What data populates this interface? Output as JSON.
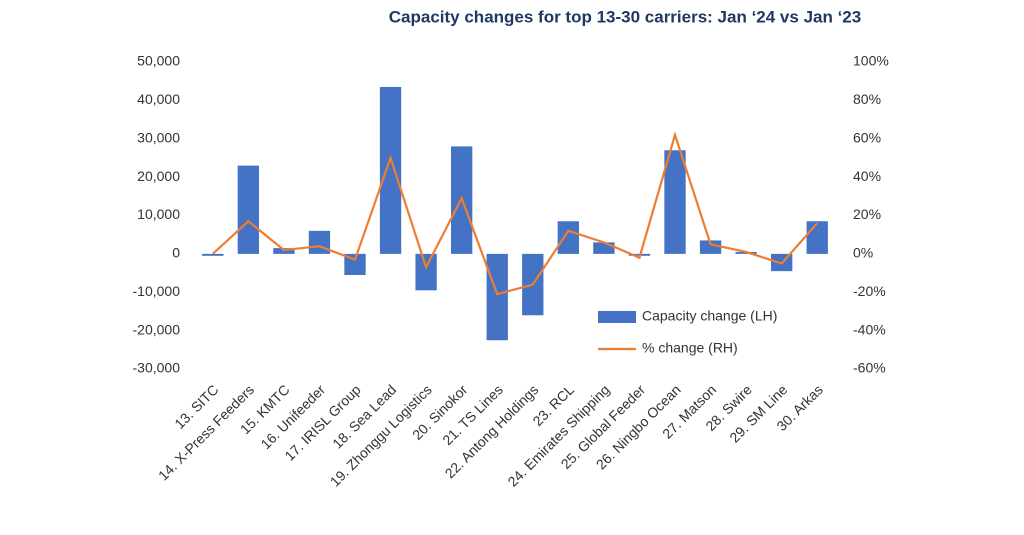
{
  "chart_data": {
    "type": "bar",
    "title": "Capacity changes for top 13-30 carriers: Jan ‘24 vs Jan ‘23",
    "categories": [
      "13. SITC",
      "14. X-Press Feeders",
      "15. KMTC",
      "16. Unifeeder",
      "17. IRISL Group",
      "18. Sea Lead",
      "19. Zhonggu Logistics",
      "20. Sinokor",
      "21. TS Lines",
      "22. Antong Holdings",
      "23. RCL",
      "24. Emirates Shipping",
      "25. Global Feeder",
      "26. Ningbo Ocean",
      "27. Matson",
      "28. Swire",
      "29. SM Line",
      "30. Arkas"
    ],
    "series": [
      {
        "name": "Capacity change (LH)",
        "type": "bar",
        "color": "#4472c4",
        "values": [
          -500,
          23000,
          1500,
          6000,
          -5500,
          43500,
          -9500,
          28000,
          -22500,
          -16000,
          8500,
          3000,
          -500,
          27000,
          3500,
          500,
          -4500,
          8500
        ]
      },
      {
        "name": "% change (RH)",
        "type": "line",
        "color": "#ed7d31",
        "axis": "y2",
        "values": [
          0,
          17,
          2,
          4,
          -3,
          50,
          -7,
          29,
          -21,
          -16,
          12,
          6,
          -2,
          62,
          5,
          1,
          -5,
          16
        ]
      }
    ],
    "ylim": [
      -30000,
      50000
    ],
    "yticks": [
      {
        "value": 50000,
        "label": "50,000"
      },
      {
        "value": 40000,
        "label": "40,000"
      },
      {
        "value": 30000,
        "label": "30,000"
      },
      {
        "value": 20000,
        "label": "20,000"
      },
      {
        "value": 10000,
        "label": "10,000"
      },
      0,
      {
        "value": -10000,
        "label": "-10,000"
      },
      {
        "value": -20000,
        "label": "-20,000"
      },
      {
        "value": -30000,
        "label": "-30,000"
      }
    ],
    "y2lim": [
      -60,
      100
    ],
    "y2ticks": [
      {
        "value": 100,
        "label": "100%"
      },
      {
        "value": 80,
        "label": "80%"
      },
      {
        "value": 60,
        "label": "60%"
      },
      {
        "value": 40,
        "label": "40%"
      },
      {
        "value": 20,
        "label": "20%"
      },
      {
        "value": 0,
        "label": "0%"
      },
      {
        "value": -20,
        "label": "-20%"
      },
      {
        "value": -40,
        "label": "-40%"
      },
      {
        "value": -60,
        "label": "-60%"
      }
    ],
    "grid": false,
    "legend": "lower right"
  }
}
